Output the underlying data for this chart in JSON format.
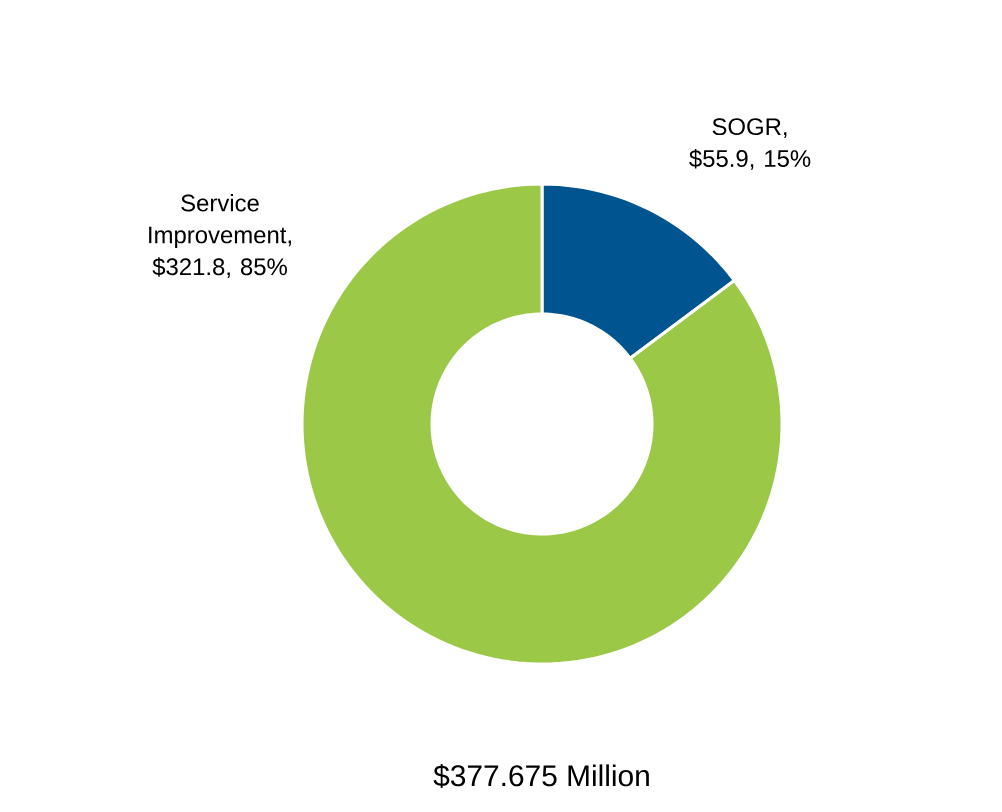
{
  "chart_data": {
    "type": "donut",
    "categories": [
      "SOGR, $55.9, 15%",
      "Service Improvement, $321.8, 85%"
    ],
    "values": [
      55.9,
      321.8
    ],
    "colors": [
      "#00548f",
      "#9bc847"
    ],
    "annotations": [
      "$377.675 Million"
    ]
  }
}
